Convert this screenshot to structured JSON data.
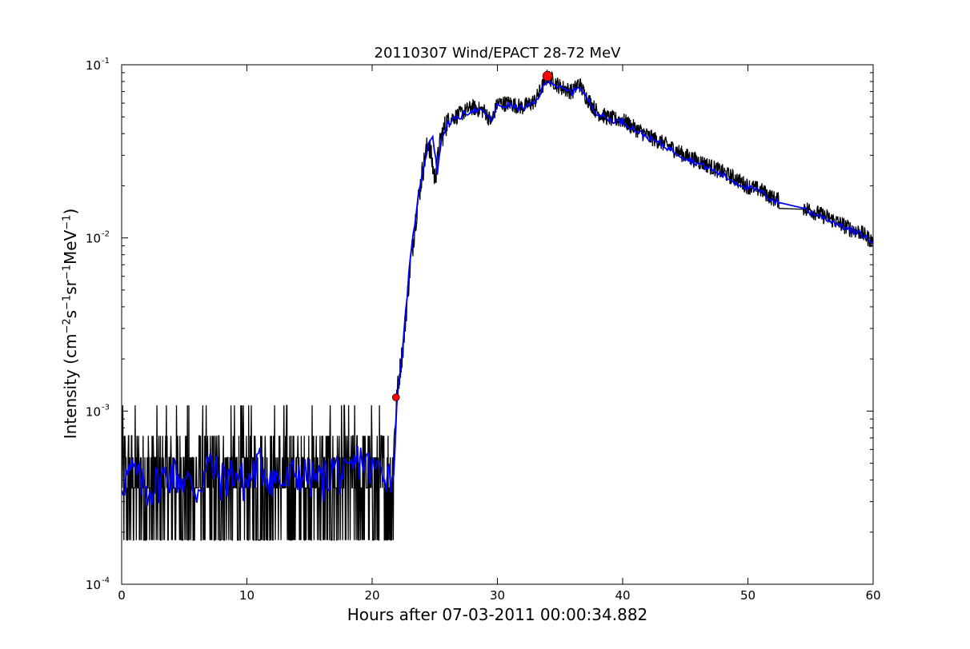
{
  "chart_data": {
    "type": "line",
    "title": "20110307 Wind/EPACT 28-72 MeV",
    "xlabel": "Hours after 07-03-2011 00:00:34.882",
    "ylabel": {
      "prefix": "Intensity (cm",
      "exp1": "−2",
      "mid1": "s",
      "exp2": "−1",
      "mid2": "sr",
      "exp3": "−1",
      "mid3": "MeV",
      "exp4": "−1",
      "suffix": ")"
    },
    "xlim": [
      0,
      60
    ],
    "ylim": [
      0.0001,
      0.1
    ],
    "yscale": "log",
    "grid": false,
    "x_ticks": [
      0,
      10,
      20,
      30,
      40,
      50,
      60
    ],
    "y_ticks": [
      {
        "value": 0.0001,
        "base": "10",
        "exp": "-4"
      },
      {
        "value": 0.001,
        "base": "10",
        "exp": "-3"
      },
      {
        "value": 0.01,
        "base": "10",
        "exp": "-2"
      },
      {
        "value": 0.1,
        "base": "10",
        "exp": "-1"
      }
    ],
    "series": [
      {
        "role": "raw",
        "color": "#000000",
        "background_levels": [
          0.00018,
          0.00036,
          0.00054,
          0.00072,
          0.00108
        ],
        "background_until_x": 21.7,
        "envelope_x": [
          21.7,
          22.0,
          22.5,
          23.0,
          23.5,
          24.0,
          24.5,
          25.0,
          25.5,
          26.0,
          27.0,
          28.0,
          29.0,
          29.5,
          30.0,
          31.0,
          32.0,
          33.0,
          34.0,
          35.0,
          36.0,
          36.5,
          37.0,
          38.0,
          39.0,
          40.0,
          41.0,
          42.0,
          43.0,
          44.0,
          45.0,
          46.0,
          47.0,
          48.0,
          49.0,
          50.0,
          51.0,
          52.0,
          52.5,
          54.5,
          55.0,
          56.0,
          57.0,
          58.0,
          59.0,
          60.0
        ],
        "envelope_y": [
          0.0006,
          0.0013,
          0.0025,
          0.0065,
          0.0135,
          0.024,
          0.037,
          0.022,
          0.038,
          0.048,
          0.052,
          0.057,
          0.054,
          0.047,
          0.06,
          0.06,
          0.057,
          0.062,
          0.086,
          0.075,
          0.07,
          0.079,
          0.067,
          0.053,
          0.049,
          0.048,
          0.043,
          0.039,
          0.036,
          0.033,
          0.03,
          0.028,
          0.026,
          0.024,
          0.022,
          0.02,
          0.019,
          0.017,
          0.0165,
          0.015,
          0.0145,
          0.0135,
          0.0125,
          0.0115,
          0.0108,
          0.0095
        ]
      },
      {
        "role": "smoothed",
        "color": "#0000ff",
        "background_level": 0.0004,
        "x": [
          0,
          1,
          2,
          3,
          4,
          5,
          6,
          7,
          8,
          9,
          10,
          11,
          12,
          13,
          14,
          15,
          16,
          17,
          18,
          19,
          20,
          21,
          21.7,
          22.0,
          22.5,
          23.0,
          23.5,
          24.0,
          24.5,
          24.8,
          25.2,
          25.5,
          26.0,
          27.0,
          28.0,
          29.0,
          29.5,
          30.0,
          31.0,
          32.0,
          33.0,
          34.0,
          35.0,
          36.0,
          36.5,
          37.0,
          38.0,
          39.0,
          40.0,
          41.0,
          42.0,
          43.0,
          44.0,
          45.0,
          46.0,
          47.0,
          48.0,
          49.0,
          50.0,
          51.0,
          52.0,
          52.5,
          54.5,
          55.0,
          56.0,
          57.0,
          58.0,
          59.0,
          60.0
        ],
        "y": [
          0.0004,
          0.00045,
          0.00035,
          0.0004,
          0.00045,
          0.0004,
          0.00035,
          0.0005,
          0.0004,
          0.00045,
          0.00038,
          0.0005,
          0.00042,
          0.00038,
          0.00045,
          0.00042,
          0.0004,
          0.00048,
          0.0004,
          0.00055,
          0.00045,
          0.00048,
          0.0004,
          0.0012,
          0.0026,
          0.007,
          0.014,
          0.024,
          0.035,
          0.04,
          0.024,
          0.036,
          0.046,
          0.05,
          0.055,
          0.053,
          0.047,
          0.058,
          0.058,
          0.056,
          0.06,
          0.083,
          0.073,
          0.069,
          0.076,
          0.066,
          0.052,
          0.048,
          0.047,
          0.042,
          0.038,
          0.035,
          0.032,
          0.029,
          0.027,
          0.025,
          0.023,
          0.021,
          0.0195,
          0.0185,
          0.0165,
          0.016,
          0.0148,
          0.014,
          0.0132,
          0.0122,
          0.0112,
          0.0105,
          0.0095
        ]
      }
    ],
    "markers": [
      {
        "x": 21.9,
        "y": 0.0012,
        "color": "#ff0000",
        "size": "small"
      },
      {
        "x": 34.0,
        "y": 0.086,
        "color": "#ff0000",
        "size": "large"
      }
    ]
  }
}
